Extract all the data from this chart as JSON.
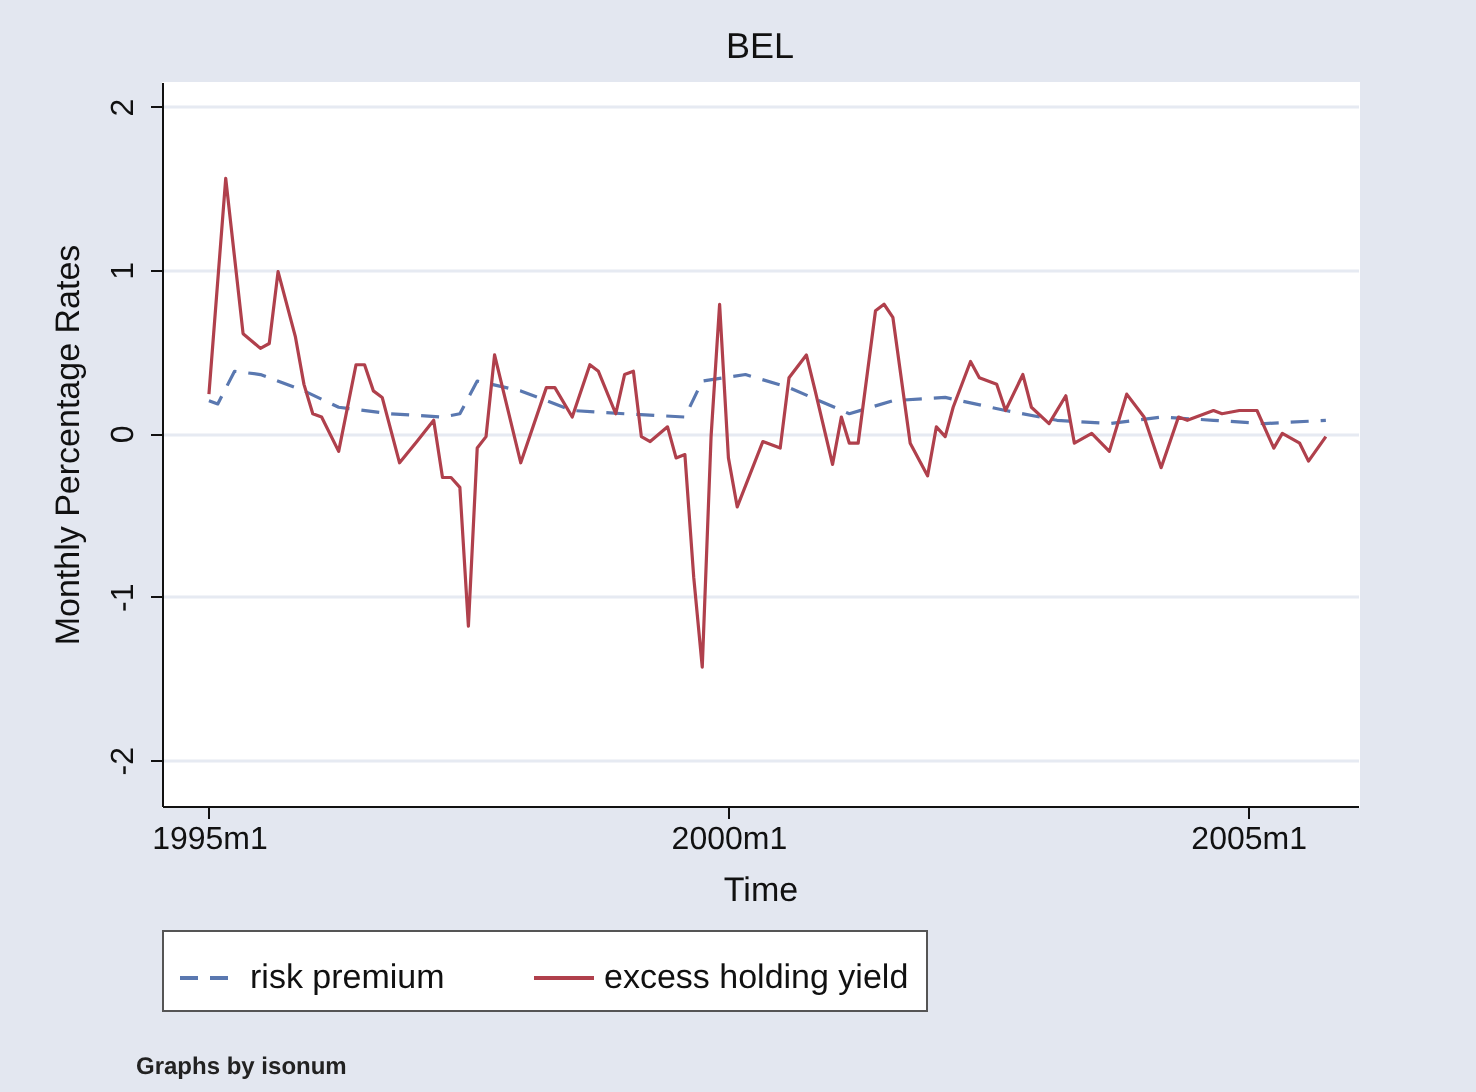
{
  "chart_data": {
    "type": "line",
    "title": "BEL",
    "xlabel": "Time",
    "ylabel": "Monthly Percentage Rates",
    "annotations": [
      "Graphs by isonum"
    ],
    "xlim": [
      "1994-07-20",
      "2006-01-22"
    ],
    "ylim": [
      -2.28,
      2.15
    ],
    "xticks": [
      {
        "value": "1995-01",
        "label": "1995m1"
      },
      {
        "value": "2000-01",
        "label": "2000m1"
      },
      {
        "value": "2005-01",
        "label": "2005m1"
      }
    ],
    "yticks": [
      -2,
      -1,
      0,
      1,
      2
    ],
    "grid": "y",
    "legend": "bottom",
    "series": [
      {
        "name": "risk premium",
        "color": "#5a78b0",
        "line_style": "dashed",
        "x": [
          "1995-01",
          "1995-02",
          "1995-04",
          "1995-07",
          "1995-12",
          "1996-04",
          "1996-10",
          "1997-04",
          "1997-06",
          "1997-08",
          "1998-01",
          "1998-07",
          "1999-01",
          "1999-08",
          "1999-10",
          "2000-03",
          "2000-08",
          "2001-03",
          "2001-08",
          "2002-02",
          "2002-09",
          "2003-03",
          "2003-09",
          "2004-03",
          "2004-09",
          "2005-03",
          "2005-10"
        ],
        "values": [
          0.2,
          0.18,
          0.38,
          0.36,
          0.26,
          0.16,
          0.12,
          0.1,
          0.12,
          0.32,
          0.26,
          0.14,
          0.12,
          0.1,
          0.32,
          0.36,
          0.28,
          0.12,
          0.2,
          0.22,
          0.14,
          0.08,
          0.06,
          0.1,
          0.08,
          0.06,
          0.08
        ]
      },
      {
        "name": "excess holding yield",
        "color": "#b0404c",
        "line_style": "solid",
        "x": [
          "1995-01",
          "1995-03",
          "1995-05",
          "1995-07",
          "1995-08",
          "1995-09",
          "1995-11",
          "1995-12",
          "1996-01",
          "1996-02",
          "1996-04",
          "1996-06",
          "1996-07",
          "1996-08",
          "1996-09",
          "1996-11",
          "1997-01",
          "1997-03",
          "1997-04",
          "1997-05",
          "1997-06",
          "1997-07",
          "1997-08",
          "1997-09",
          "1997-10",
          "1998-01",
          "1998-04",
          "1998-05",
          "1998-07",
          "1998-09",
          "1998-10",
          "1998-12",
          "1999-01",
          "1999-02",
          "1999-03",
          "1999-04",
          "1999-06",
          "1999-07",
          "1999-08",
          "1999-09",
          "1999-10",
          "1999-11",
          "1999-12",
          "2000-01",
          "2000-02",
          "2000-05",
          "2000-07",
          "2000-08",
          "2000-10",
          "2000-11",
          "2001-01",
          "2001-02",
          "2001-03",
          "2001-04",
          "2001-06",
          "2001-07",
          "2001-08",
          "2001-10",
          "2001-12",
          "2002-01",
          "2002-02",
          "2002-03",
          "2002-05",
          "2002-06",
          "2002-08",
          "2002-09",
          "2002-11",
          "2002-12",
          "2003-02",
          "2003-04",
          "2003-05",
          "2003-07",
          "2003-09",
          "2003-11",
          "2004-01",
          "2004-03",
          "2004-05",
          "2004-06",
          "2004-09",
          "2004-10",
          "2004-12",
          "2005-02",
          "2005-04",
          "2005-05",
          "2005-07",
          "2005-08",
          "2005-10"
        ],
        "values": [
          0.24,
          1.56,
          0.61,
          0.52,
          0.55,
          0.99,
          0.59,
          0.3,
          0.12,
          0.1,
          -0.11,
          0.42,
          0.42,
          0.26,
          0.22,
          -0.18,
          -0.05,
          0.08,
          -0.27,
          -0.27,
          -0.33,
          -1.18,
          -0.09,
          -0.02,
          0.48,
          -0.18,
          0.28,
          0.28,
          0.1,
          0.42,
          0.38,
          0.12,
          0.36,
          0.38,
          -0.02,
          -0.05,
          0.04,
          -0.15,
          -0.13,
          -0.88,
          -1.43,
          -0.02,
          0.79,
          -0.15,
          -0.45,
          -0.05,
          -0.09,
          0.34,
          0.48,
          0.26,
          -0.19,
          0.1,
          -0.06,
          -0.06,
          0.75,
          0.79,
          0.71,
          -0.06,
          -0.26,
          0.04,
          -0.02,
          0.16,
          0.44,
          0.34,
          0.3,
          0.14,
          0.36,
          0.16,
          0.06,
          0.23,
          -0.06,
          0.0,
          -0.11,
          0.24,
          0.1,
          -0.21,
          0.1,
          0.08,
          0.14,
          0.12,
          0.14,
          0.14,
          -0.09,
          0.0,
          -0.06,
          -0.17,
          -0.02
        ]
      }
    ]
  }
}
